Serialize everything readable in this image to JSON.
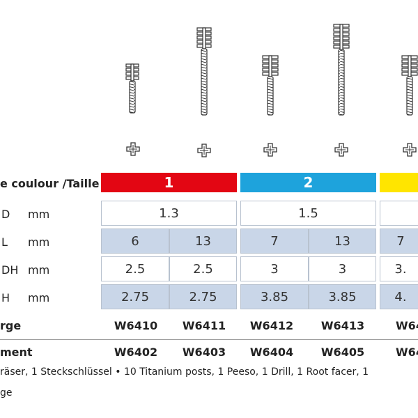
{
  "size_header": {
    "label": "e coulour /Taille",
    "sizes": [
      "1",
      "2"
    ]
  },
  "rows": [
    {
      "label": "D",
      "unit": "mm",
      "values": [
        "1.3",
        "1.5"
      ]
    },
    {
      "label": "L",
      "unit": "mm",
      "values": [
        "6",
        "13",
        "7",
        "13",
        "7"
      ]
    },
    {
      "label": "DH",
      "unit": "mm",
      "values": [
        "2.5",
        "2.5",
        "3",
        "3",
        "3."
      ]
    },
    {
      "label": "H",
      "unit": "mm",
      "values": [
        "2.75",
        "2.75",
        "3.85",
        "3.85",
        "4."
      ]
    }
  ],
  "articles": [
    {
      "label": "rge",
      "codes": [
        "W6410",
        "W6411",
        "W6412",
        "W6413",
        "W64"
      ]
    },
    {
      "label": "ment",
      "codes": [
        "W6402",
        "W6403",
        "W6404",
        "W6405",
        "W64"
      ]
    }
  ],
  "contents": "räser, 1 Steckschlüssel  •  10 Titanium posts, 1 Peeso, 1 Drill, 1 Root facer, 1",
  "contents_2": "ge"
}
